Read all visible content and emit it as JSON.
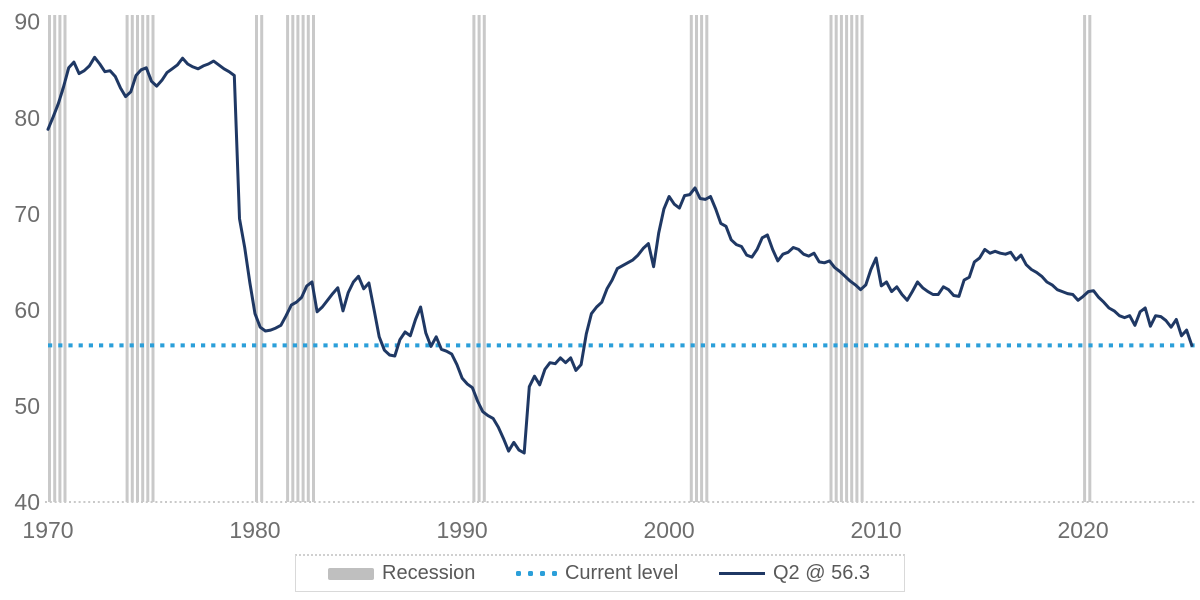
{
  "legend": {
    "recession_label": "Recession",
    "current_level_label": "Current level",
    "series_label": "Q2 @ 56.3"
  },
  "colors": {
    "series_line": "#1f3864",
    "current_level_line": "#2b9fd9",
    "recession_bar": "#c9c9c9",
    "axis_dotted_line": "#c9c9c9",
    "axis_text": "#6e6e6e",
    "legend_text": "#595959",
    "legend_border": "#d9d9d9",
    "background": "#ffffff"
  },
  "chart_data": {
    "type": "line",
    "title": "",
    "frequency": "quarterly",
    "x_start": 1970,
    "x_step_years": 0.25,
    "x_end_label": "Q2 2025",
    "xlabel": "",
    "ylabel": "",
    "xlim": [
      1970,
      2025.5
    ],
    "ylim": [
      40,
      90.7
    ],
    "x_ticks": [
      1970,
      1980,
      1990,
      2000,
      2010,
      2020
    ],
    "y_ticks": [
      40,
      50,
      60,
      70,
      80,
      90
    ],
    "grid": false,
    "legend_position": "bottom",
    "current_level": {
      "label": "Current level",
      "value": 56.3
    },
    "recessions_quarter_spans": [
      [
        1970.0,
        1971.0
      ],
      [
        1973.75,
        1975.25
      ],
      [
        1980.0,
        1980.5
      ],
      [
        1981.5,
        1983.0
      ],
      [
        1990.5,
        1991.25
      ],
      [
        2001.0,
        2002.0
      ],
      [
        2007.75,
        2009.5
      ],
      [
        2020.0,
        2020.5
      ]
    ],
    "series": [
      {
        "name": "Q2 @ 56.3",
        "last_point": {
          "period": "Q2 2025",
          "value": 56.3
        },
        "values": [
          78.8,
          80.1,
          81.5,
          83.2,
          85.2,
          85.8,
          84.6,
          84.9,
          85.4,
          86.3,
          85.6,
          84.8,
          84.9,
          84.3,
          83.1,
          82.2,
          82.7,
          84.4,
          85.0,
          85.2,
          83.8,
          83.3,
          83.9,
          84.7,
          85.1,
          85.5,
          86.2,
          85.6,
          85.3,
          85.1,
          85.4,
          85.6,
          85.9,
          85.5,
          85.1,
          84.8,
          84.4,
          69.5,
          66.5,
          62.8,
          59.6,
          58.2,
          57.8,
          57.9,
          58.1,
          58.4,
          59.4,
          60.5,
          60.8,
          61.3,
          62.5,
          62.9,
          59.8,
          60.3,
          61.0,
          61.7,
          62.3,
          59.9,
          61.8,
          62.9,
          63.5,
          62.2,
          62.8,
          60.0,
          57.2,
          55.8,
          55.3,
          55.2,
          56.9,
          57.7,
          57.3,
          59.0,
          60.3,
          57.6,
          56.2,
          57.2,
          55.9,
          55.7,
          55.4,
          54.3,
          52.9,
          52.3,
          51.9,
          50.5,
          49.4,
          49.0,
          48.7,
          47.8,
          46.6,
          45.3,
          46.2,
          45.4,
          45.1,
          52.0,
          53.1,
          52.2,
          53.8,
          54.5,
          54.4,
          55.0,
          54.5,
          55.0,
          53.7,
          54.3,
          57.5,
          59.6,
          60.3,
          60.8,
          62.2,
          63.1,
          64.3,
          64.6,
          64.9,
          65.2,
          65.7,
          66.4,
          66.9,
          64.5,
          68.0,
          70.5,
          71.8,
          71.0,
          70.6,
          71.9,
          72.0,
          72.7,
          71.6,
          71.5,
          71.8,
          70.5,
          69.0,
          68.7,
          67.3,
          66.8,
          66.6,
          65.7,
          65.5,
          66.3,
          67.5,
          67.8,
          66.3,
          65.1,
          65.8,
          66.0,
          66.5,
          66.3,
          65.8,
          65.6,
          65.9,
          65.0,
          64.9,
          65.1,
          64.4,
          64.0,
          63.5,
          63.0,
          62.6,
          62.1,
          62.6,
          64.2,
          65.4,
          62.5,
          62.9,
          61.9,
          62.4,
          61.6,
          61.0,
          61.9,
          62.9,
          62.3,
          61.9,
          61.6,
          61.6,
          62.4,
          62.1,
          61.5,
          61.4,
          63.1,
          63.4,
          65.0,
          65.4,
          66.3,
          65.9,
          66.1,
          65.9,
          65.8,
          66.0,
          65.2,
          65.7,
          64.7,
          64.2,
          63.9,
          63.5,
          62.9,
          62.6,
          62.1,
          61.9,
          61.7,
          61.6,
          61.0,
          61.4,
          61.9,
          62.0,
          61.3,
          60.8,
          60.2,
          59.9,
          59.4,
          59.2,
          59.4,
          58.4,
          59.8,
          60.2,
          58.3,
          59.4,
          59.3,
          58.9,
          58.2,
          59.0,
          57.3,
          57.9,
          56.3
        ]
      }
    ]
  }
}
